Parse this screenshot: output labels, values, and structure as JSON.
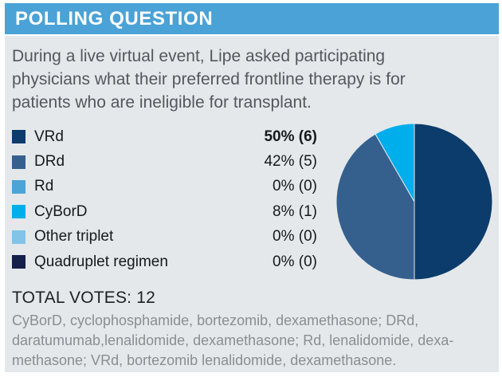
{
  "header": {
    "title": "POLLING QUESTION",
    "bg_color": "#4AA2D6",
    "text_color": "#FFFFFF"
  },
  "question_text": "During a live virtual event, Lipe asked participating physicians what their preferred frontline therapy is for patients who are ineligible for transplant.",
  "legend": {
    "items": [
      {
        "label": "VRd",
        "value": "50% (6)",
        "color": "#0B3C6C",
        "bold": true
      },
      {
        "label": "DRd",
        "value": "42% (5)",
        "color": "#35608E",
        "bold": false
      },
      {
        "label": "Rd",
        "value": "0% (0)",
        "color": "#4BA3D6",
        "bold": false
      },
      {
        "label": "CyBorD",
        "value": "8% (1)",
        "color": "#00AEEB",
        "bold": false
      },
      {
        "label": "Other triplet",
        "value": "0% (0)",
        "color": "#82C3E8",
        "bold": false
      },
      {
        "label": "Quadruplet regimen",
        "value": "0% (0)",
        "color": "#14204A",
        "bold": false
      }
    ]
  },
  "total_votes": {
    "label": "TOTAL VOTES:",
    "value": "12"
  },
  "footnote_lines": [
    "CyBorD, cyclophosphamide, bortezomib, dexamethasone; DRd,",
    "daratumumab,lenalidomide, dexamethasone; Rd, lenalidomide, dexa-",
    "methasone; VRd, bortezomib  lenalidomide, dexamethasone."
  ],
  "chart_data": {
    "type": "pie",
    "title": "Preferred frontline therapy for transplant-ineligible patients",
    "categories": [
      "VRd",
      "DRd",
      "Rd",
      "CyBorD",
      "Other triplet",
      "Quadruplet regimen"
    ],
    "values": [
      50,
      42,
      0,
      8,
      0,
      0
    ],
    "counts": [
      6,
      5,
      0,
      1,
      0,
      0
    ],
    "total": 12,
    "colors": [
      "#0B3C6C",
      "#35608E",
      "#4BA3D6",
      "#00AEEB",
      "#82C3E8",
      "#14204A"
    ],
    "start_angle_deg": 0,
    "direction": "clockwise",
    "legend_position": "left"
  },
  "colors": {
    "panel_bg": "#E4E8EB",
    "page_bg": "#FFFFFF"
  }
}
